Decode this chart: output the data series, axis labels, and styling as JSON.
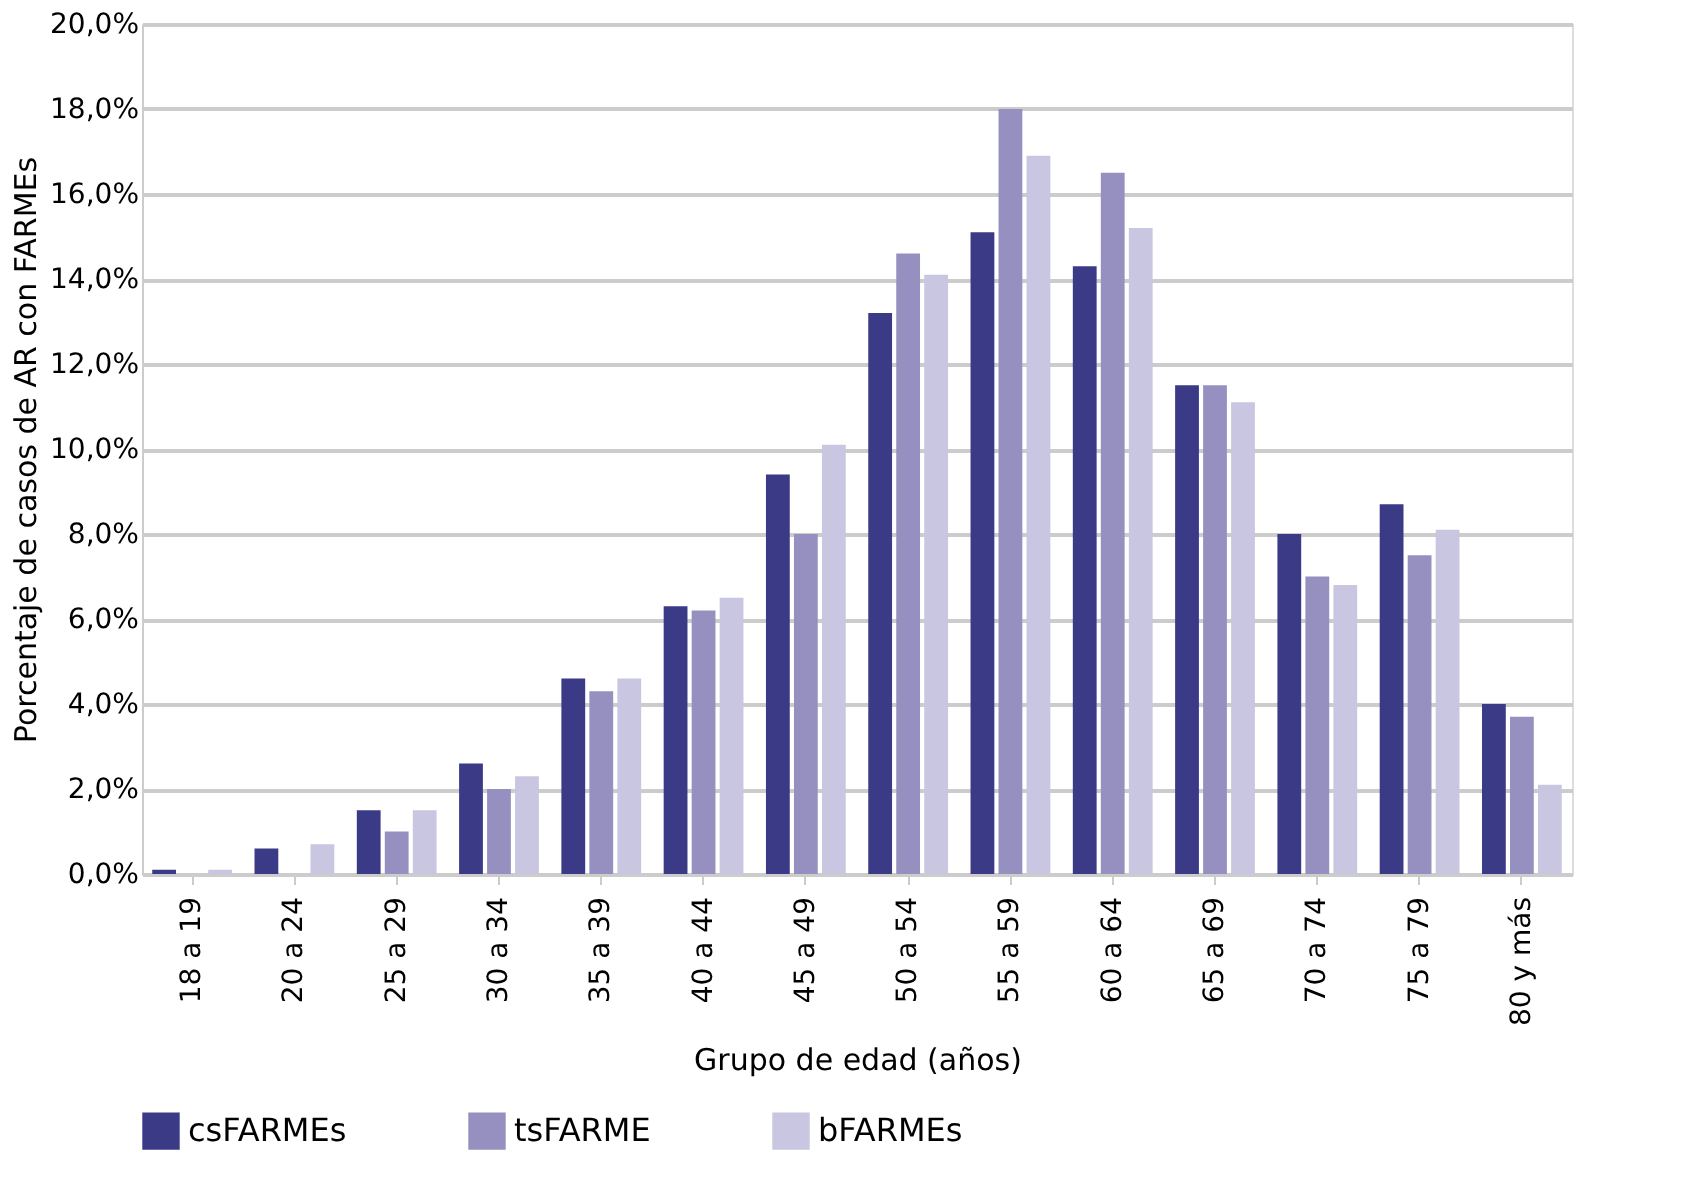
{
  "chart_data": {
    "type": "bar",
    "xlabel": "Grupo de edad (años)",
    "ylabel": "Porcentaje de casos de AR con FARMEs",
    "categories": [
      "18 a 19",
      "20 a 24",
      "25 a 29",
      "30 a 34",
      "35 a 39",
      "40 a 44",
      "45 a 49",
      "50 a 54",
      "55 a 59",
      "60 a 64",
      "65 a 69",
      "70 a 74",
      "75 a 79",
      "80 y más"
    ],
    "series": [
      {
        "name": "csFARMEs",
        "color": "#3b3a87",
        "values": [
          0.1,
          0.6,
          1.5,
          2.6,
          4.6,
          6.3,
          9.4,
          13.2,
          15.1,
          14.3,
          11.5,
          8.0,
          8.7,
          4.0
        ]
      },
      {
        "name": "tsFARME",
        "color": "#9590c0",
        "values": [
          null,
          null,
          1.0,
          2.0,
          4.3,
          6.2,
          8.0,
          14.6,
          18.0,
          16.5,
          11.5,
          7.0,
          7.5,
          3.7
        ]
      },
      {
        "name": "bFARMEs",
        "color": "#c8c6e0",
        "values": [
          0.1,
          0.7,
          1.5,
          2.3,
          4.6,
          6.5,
          10.1,
          14.1,
          16.9,
          15.2,
          11.1,
          6.8,
          8.1,
          2.1
        ]
      }
    ],
    "ylim": [
      0,
      20
    ],
    "yticks": [
      {
        "value": 0,
        "label": "0,0%"
      },
      {
        "value": 2,
        "label": "2,0%"
      },
      {
        "value": 4,
        "label": "4,0%"
      },
      {
        "value": 6,
        "label": "6,0%"
      },
      {
        "value": 8,
        "label": "8,0%"
      },
      {
        "value": 10,
        "label": "10,0%"
      },
      {
        "value": 12,
        "label": "12,0%"
      },
      {
        "value": 14,
        "label": "14,0%"
      },
      {
        "value": 16,
        "label": "16,0%"
      },
      {
        "value": 18,
        "label": "18,0%"
      },
      {
        "value": 20,
        "label": "20,0%"
      }
    ],
    "grid": "y",
    "legend": "bottom"
  }
}
